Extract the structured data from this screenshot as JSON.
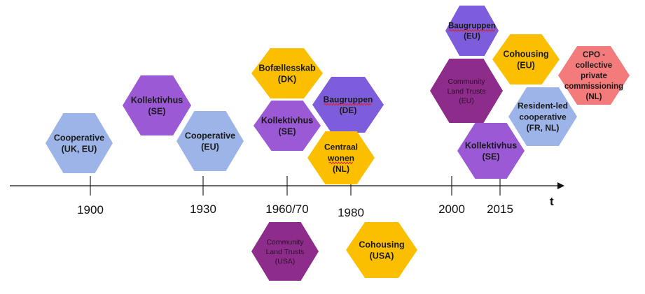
{
  "timeline": {
    "axis_label": "t",
    "ticks": [
      {
        "label": "1900"
      },
      {
        "label": "1930"
      },
      {
        "label": "1960/70"
      },
      {
        "label": "1980"
      },
      {
        "label": "2000"
      },
      {
        "label": "2015"
      }
    ]
  },
  "colors": {
    "cooperative_blue": "#9db4e8",
    "kollektivhus_purple": "#9b59d6",
    "bofaellesskab_amber": "#fbbf00",
    "baugruppen_violet": "#7d5ddb",
    "community_land_trust_plum": "#8e2c8c",
    "cpo_coral": "#f47b7b"
  },
  "hexagons": [
    {
      "id": "cooperative-1900",
      "lines": [
        "Cooperative",
        "(UK, EU)"
      ],
      "color": "#9db4e8"
    },
    {
      "id": "kollektivhus-se-1",
      "lines": [
        "Kollektivhus",
        "(SE)"
      ],
      "color": "#9b59d6"
    },
    {
      "id": "cooperative-1930",
      "lines": [
        "Cooperative",
        "(EU)"
      ],
      "color": "#9db4e8"
    },
    {
      "id": "bofaellesskab-dk",
      "lines": [
        "Bofællesskab",
        "(DK)"
      ],
      "color": "#fbbf00"
    },
    {
      "id": "kollektivhus-se-2",
      "lines": [
        "Kollektivhus",
        "(SE)"
      ],
      "color": "#9b59d6"
    },
    {
      "id": "baugruppen-de",
      "lines": [
        "Baugruppen",
        "(DE)"
      ],
      "color": "#7d5ddb"
    },
    {
      "id": "centraal-wonen-nl",
      "lines": [
        "Centraal",
        "wonen",
        "(NL)"
      ],
      "color": "#fbbf00"
    },
    {
      "id": "community-land-trusts-usa",
      "lines": [
        "Community",
        "Land Trusts",
        "(USA)"
      ],
      "color": "#8e2c8c"
    },
    {
      "id": "cohousing-usa",
      "lines": [
        "Cohousing",
        "(USA)"
      ],
      "color": "#fbbf00"
    },
    {
      "id": "baugruppen-eu",
      "lines": [
        "Baugruppen",
        "(EU)"
      ],
      "color": "#7d5ddb"
    },
    {
      "id": "cohousing-eu",
      "lines": [
        "Cohousing",
        "(EU)"
      ],
      "color": "#fbbf00"
    },
    {
      "id": "community-land-trusts-eu",
      "lines": [
        "Community",
        "Land Trusts",
        "(EU)"
      ],
      "color": "#8e2c8c"
    },
    {
      "id": "cpo-nl",
      "lines": [
        "CPO -",
        "collective",
        "private",
        "commissioning",
        "(NL)"
      ],
      "color": "#f47b7b"
    },
    {
      "id": "resident-led-cooperative",
      "lines": [
        "Resident-led",
        "cooperative",
        "(FR, NL)"
      ],
      "color": "#9db4e8"
    },
    {
      "id": "kollektivhus-se-3",
      "lines": [
        "Kollektivhus",
        "(SE)"
      ],
      "color": "#9b59d6"
    }
  ]
}
